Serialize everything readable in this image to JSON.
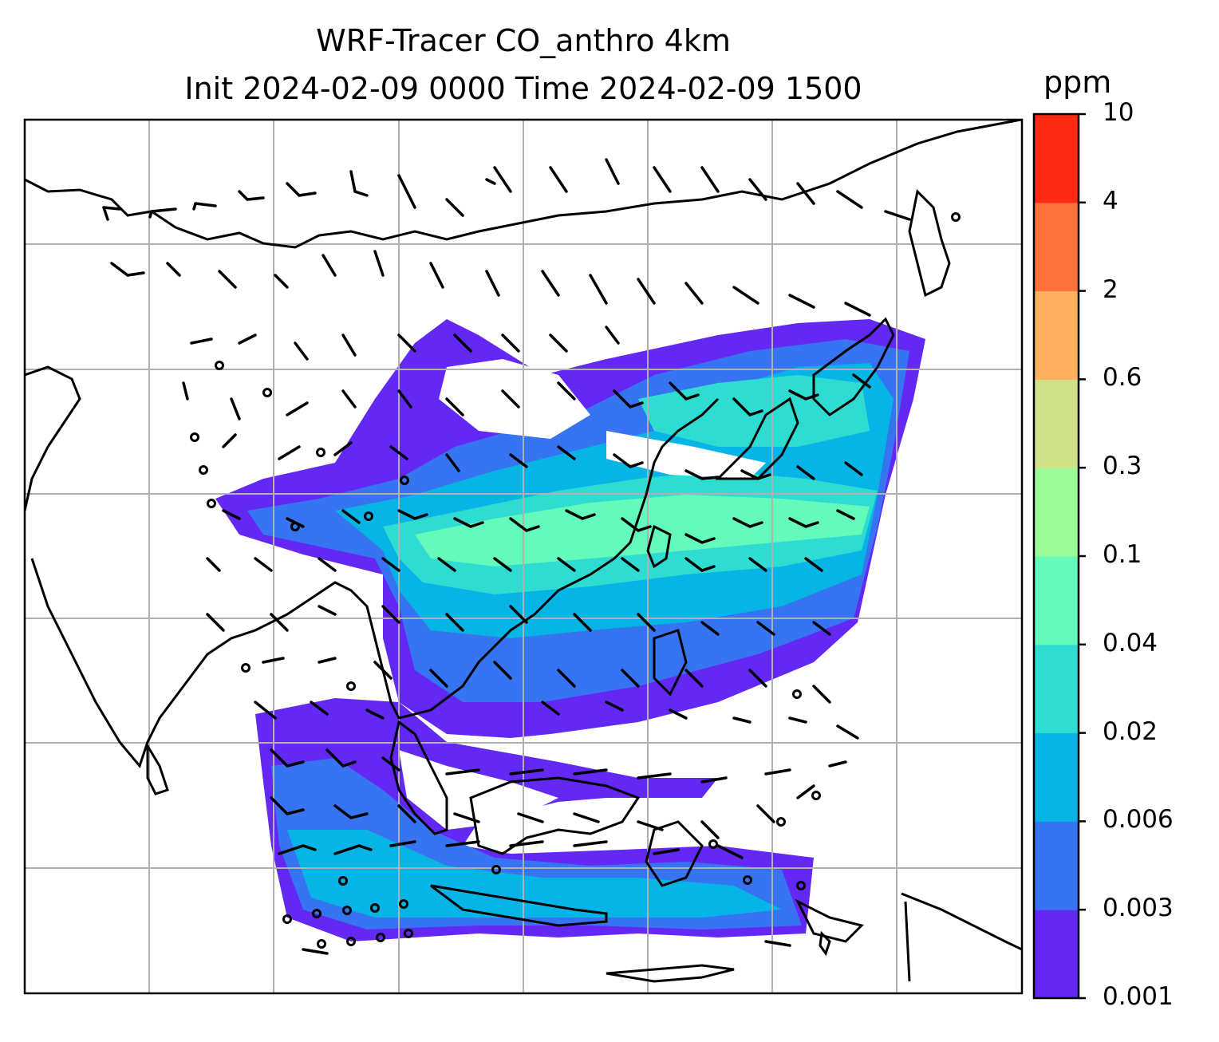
{
  "title": {
    "line1": "WRF-Tracer CO_anthro 4km",
    "line2": "Init 2024-02-09 0000 Time 2024-02-09 1500"
  },
  "colorbar": {
    "unit": "ppm",
    "levels": [
      "0.001",
      "0.003",
      "0.006",
      "0.02",
      "0.04",
      "0.1",
      "0.3",
      "0.6",
      "2",
      "4",
      "10"
    ],
    "colors": [
      "#6428f5",
      "#3774f1",
      "#06b4e6",
      "#2fdcd2",
      "#64fabc",
      "#9afa98",
      "#cfe186",
      "#feb05f",
      "#ff723b",
      "#ff2914"
    ]
  },
  "map": {
    "tracer": "CO_anthro",
    "overlay": "wind-barbs",
    "gridlines": true
  }
}
